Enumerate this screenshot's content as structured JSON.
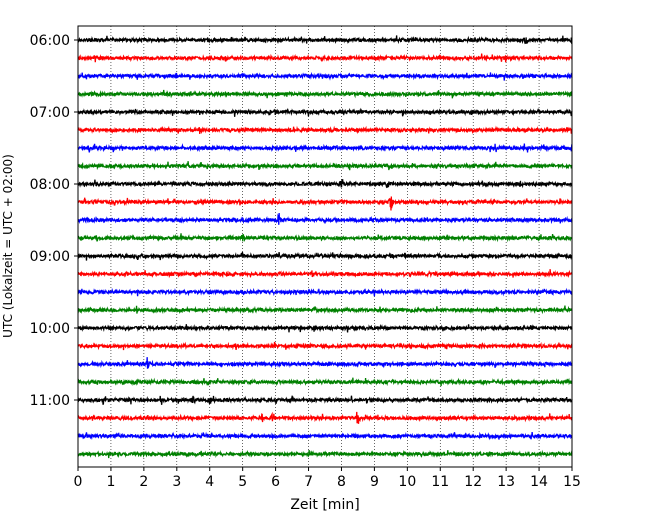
{
  "chart_data": {
    "type": "line",
    "title": "",
    "xlabel": "Zeit  [min]",
    "ylabel": "UTC (Lokalzeit = UTC + 02:00)",
    "xlim": [
      0,
      15
    ],
    "x_ticks": [
      0,
      1,
      2,
      3,
      4,
      5,
      6,
      7,
      8,
      9,
      10,
      11,
      12,
      13,
      14,
      15
    ],
    "x_tick_labels": [
      "0",
      "1",
      "2",
      "3",
      "4",
      "5",
      "6",
      "7",
      "8",
      "9",
      "10",
      "11",
      "12",
      "13",
      "14",
      "15"
    ],
    "y_tick_labels": [
      "06:00",
      "07:00",
      "08:00",
      "09:00",
      "10:00",
      "11:00"
    ],
    "y_tick_traces": [
      0,
      4,
      8,
      12,
      16,
      20
    ],
    "grid": "vertical dotted",
    "color_cycle": [
      "#000000",
      "#ff0000",
      "#0000ff",
      "#008000"
    ],
    "series": [
      {
        "start": "06:00",
        "color": "#000000",
        "events": [
          {
            "t": 13.6,
            "amp": 0.5
          },
          {
            "t": 15.0,
            "amp": 0.5
          }
        ]
      },
      {
        "start": "06:15",
        "color": "#ff0000",
        "events": []
      },
      {
        "start": "06:30",
        "color": "#0000ff",
        "events": []
      },
      {
        "start": "06:45",
        "color": "#008000",
        "events": []
      },
      {
        "start": "07:00",
        "color": "#000000",
        "events": [
          {
            "t": 5.8,
            "amp": 0.4
          }
        ]
      },
      {
        "start": "07:15",
        "color": "#ff0000",
        "events": [
          {
            "t": 3.7,
            "amp": 0.3
          }
        ]
      },
      {
        "start": "07:30",
        "color": "#0000ff",
        "events": []
      },
      {
        "start": "07:45",
        "color": "#008000",
        "events": []
      },
      {
        "start": "08:00",
        "color": "#000000",
        "events": [
          {
            "t": 8.0,
            "amp": 0.4
          },
          {
            "t": 9.4,
            "amp": 0.5
          },
          {
            "t": 13.4,
            "amp": 0.4
          }
        ]
      },
      {
        "start": "08:15",
        "color": "#ff0000",
        "events": [
          {
            "t": 9.5,
            "amp": 1.2
          }
        ]
      },
      {
        "start": "08:30",
        "color": "#0000ff",
        "events": [
          {
            "t": 6.1,
            "amp": 0.8
          },
          {
            "t": 7.5,
            "amp": 0.3
          }
        ]
      },
      {
        "start": "08:45",
        "color": "#008000",
        "events": [
          {
            "t": 5.0,
            "amp": 0.4
          }
        ]
      },
      {
        "start": "09:00",
        "color": "#000000",
        "events": []
      },
      {
        "start": "09:15",
        "color": "#ff0000",
        "events": [
          {
            "t": 7.1,
            "amp": 0.3
          }
        ]
      },
      {
        "start": "09:30",
        "color": "#0000ff",
        "events": []
      },
      {
        "start": "09:45",
        "color": "#008000",
        "events": [
          {
            "t": 7.2,
            "amp": 0.3
          }
        ]
      },
      {
        "start": "10:00",
        "color": "#000000",
        "events": []
      },
      {
        "start": "10:15",
        "color": "#ff0000",
        "events": [
          {
            "t": 4.8,
            "amp": 0.4
          }
        ]
      },
      {
        "start": "10:30",
        "color": "#0000ff",
        "events": [
          {
            "t": 2.1,
            "amp": 0.6
          }
        ]
      },
      {
        "start": "10:45",
        "color": "#008000",
        "events": [
          {
            "t": 1.4,
            "amp": 0.4
          }
        ]
      },
      {
        "start": "11:00",
        "color": "#000000",
        "events": [
          {
            "t": 3.5,
            "amp": 0.6
          },
          {
            "t": 4.0,
            "amp": 0.6
          }
        ]
      },
      {
        "start": "11:15",
        "color": "#ff0000",
        "events": [
          {
            "t": 8.5,
            "amp": 1.0
          },
          {
            "t": 5.9,
            "amp": 0.3
          }
        ]
      },
      {
        "start": "11:30",
        "color": "#0000ff",
        "events": []
      },
      {
        "start": "11:45",
        "color": "#008000",
        "events": []
      }
    ]
  }
}
